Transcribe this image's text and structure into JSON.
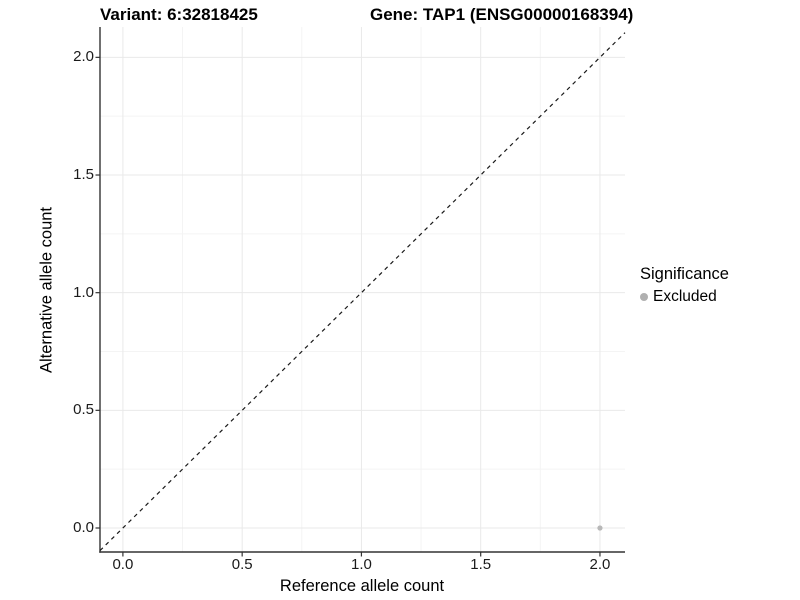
{
  "chart_data": {
    "type": "scatter",
    "title_left": "Variant: 6:32818425",
    "title_right": "Gene: TAP1 (ENSG00000168394)",
    "xlabel": "Reference allele count",
    "ylabel": "Alternative allele count",
    "xlim": [
      -0.096,
      2.105
    ],
    "ylim": [
      -0.102,
      2.129
    ],
    "x_ticks": [
      0.0,
      0.5,
      1.0,
      1.5,
      2.0
    ],
    "y_ticks": [
      0.0,
      0.5,
      1.0,
      1.5,
      2.0
    ],
    "x_tick_labels": [
      "0.0",
      "0.5",
      "1.0",
      "1.5",
      "2.0"
    ],
    "y_tick_labels": [
      "0.0",
      "0.5",
      "1.0",
      "1.5",
      "2.0"
    ],
    "grid": true,
    "points": [
      {
        "x": 2.0,
        "y": 0.0,
        "series": "Excluded"
      }
    ],
    "reference_line": {
      "style": "dashed",
      "slope": 1,
      "intercept": 0
    },
    "legend": {
      "position": "right",
      "title": "Significance",
      "items": [
        {
          "label": "Excluded",
          "color": "#b0b0b0"
        }
      ]
    },
    "colors": {
      "point": "#b8b8b8",
      "grid_major": "#e9e9e9",
      "grid_minor": "#f4f4f4",
      "axis": "#333333",
      "dashed_line": "#1a1a1a"
    }
  }
}
